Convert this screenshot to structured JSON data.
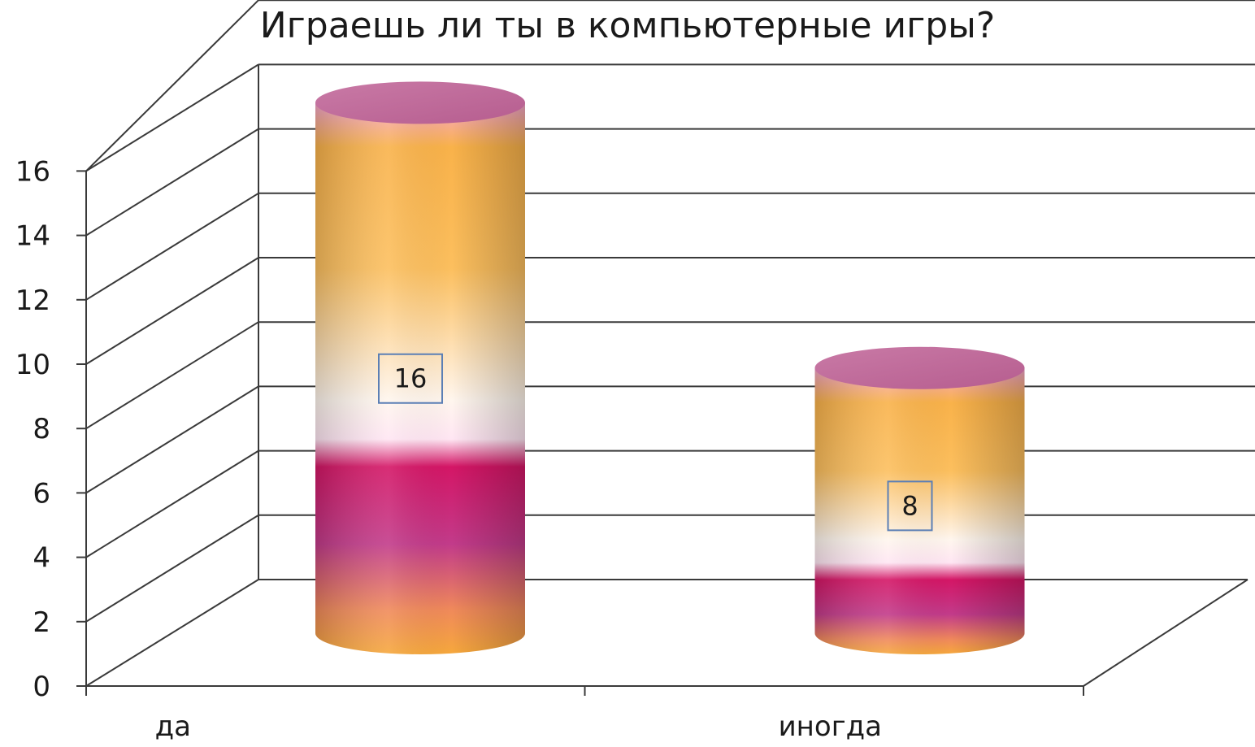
{
  "chart_data": {
    "type": "bar",
    "title": "Играешь ли ты в компьютерные игры?",
    "categories": [
      "да",
      "иногда"
    ],
    "values": [
      16,
      8
    ],
    "data_labels": [
      "16",
      "8"
    ],
    "ylim": [
      0,
      16
    ],
    "yticks": [
      "0",
      "2",
      "4",
      "6",
      "8",
      "10",
      "12",
      "14",
      "16"
    ],
    "grid": true,
    "style": "3d-cylinder",
    "colors": {
      "top": "#c0679a",
      "upper": "#f7b042",
      "middle": "#ffffff",
      "lower": "#c4145e",
      "bottom": "#f3a73c",
      "grid": "#3a3a3a",
      "label_border": "#5b7fb5"
    }
  }
}
